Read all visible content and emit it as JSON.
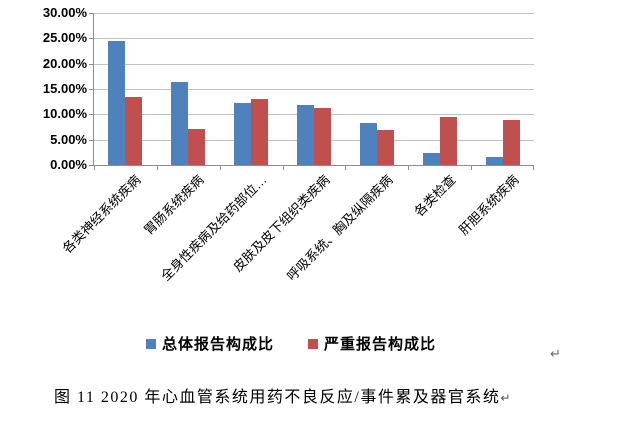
{
  "chart_data": {
    "type": "bar",
    "title": "",
    "categories": [
      "各类神经系统疾病",
      "胃肠系统疾病",
      "全身性疾病及给药部位…",
      "皮肤及皮下组织类疾病",
      "呼吸系统、胸及纵隔疾病",
      "各类检查",
      "肝胆系统疾病"
    ],
    "series": [
      {
        "name": "总体报告构成比",
        "color": "#4F81BD",
        "values": [
          24.4,
          16.4,
          12.2,
          11.9,
          8.2,
          2.4,
          1.6
        ]
      },
      {
        "name": "严重报告构成比",
        "color": "#C0504D",
        "values": [
          13.5,
          7.1,
          13.0,
          11.2,
          7.0,
          9.5,
          8.9
        ]
      }
    ],
    "ylim": [
      0,
      30
    ],
    "yticks": [
      "30.00%",
      "25.00%",
      "20.00%",
      "15.00%",
      "10.00%",
      "5.00%",
      "0.00%"
    ],
    "value_format": "percent",
    "grid": true,
    "legend_position": "bottom",
    "xlabel": "",
    "ylabel": ""
  },
  "colors": {
    "series_total": "#4F81BD",
    "series_serious": "#C0504D",
    "gridline": "#c2c2c2",
    "axis": "#8c8c8c"
  },
  "paragraph_mark": "↵",
  "caption": {
    "text": "图 11  2020 年心血管系统用药不良反应/事件累及器官系统",
    "return_mark": "↵"
  }
}
